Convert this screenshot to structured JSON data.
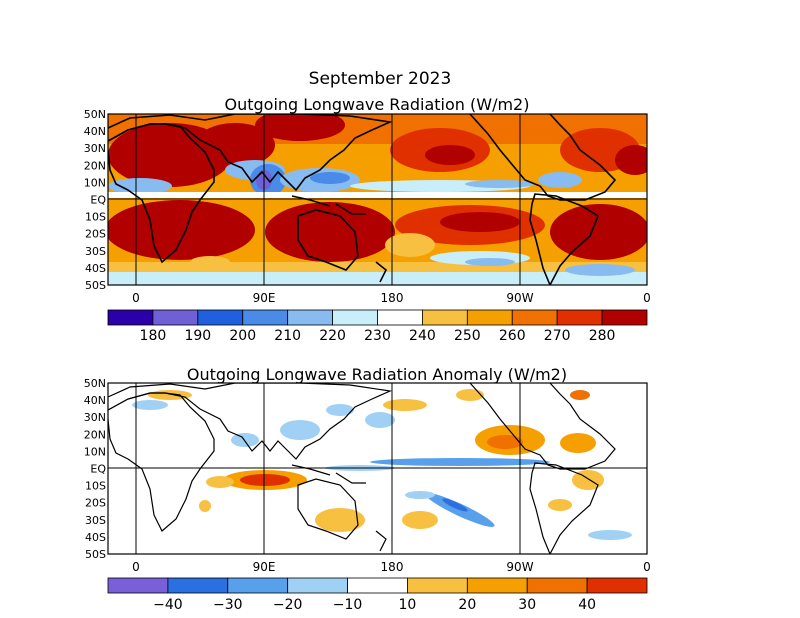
{
  "figure": {
    "title": "September 2023"
  },
  "maps": [
    {
      "id": "olr",
      "title": "Outgoing Longwave Radiation (W/m2)",
      "lat_labels": [
        "50N",
        "40N",
        "30N",
        "20N",
        "10N",
        "EQ",
        "10S",
        "20S",
        "30S",
        "40S",
        "50S"
      ],
      "lon_labels": [
        "0",
        "90E",
        "180",
        "90W",
        "0"
      ],
      "colorbar": {
        "colors": [
          "#2a00aa",
          "#7060d8",
          "#2060e0",
          "#4a8ae8",
          "#88bcf0",
          "#c8eefa",
          "#ffffff",
          "#f8c040",
          "#f5a000",
          "#f07000",
          "#e03000",
          "#b00000"
        ],
        "tick_labels": [
          "180",
          "190",
          "200",
          "210",
          "220",
          "230",
          "240",
          "250",
          "260",
          "270",
          "280"
        ]
      }
    },
    {
      "id": "olr-anomaly",
      "title": "Outgoing Longwave Radiation Anomaly (W/m2)",
      "lat_labels": [
        "50N",
        "40N",
        "30N",
        "20N",
        "10N",
        "EQ",
        "10S",
        "20S",
        "30S",
        "40S",
        "50S"
      ],
      "lon_labels": [
        "0",
        "90E",
        "180",
        "90W",
        "0"
      ],
      "colorbar": {
        "colors": [
          "#7a60d8",
          "#2a70e0",
          "#58a0ec",
          "#a0d0f4",
          "#ffffff",
          "#f8c040",
          "#f5a000",
          "#f07000",
          "#e03000"
        ],
        "tick_labels": [
          "−40",
          "−30",
          "−20",
          "−10",
          "10",
          "20",
          "30",
          "40"
        ]
      }
    }
  ]
}
